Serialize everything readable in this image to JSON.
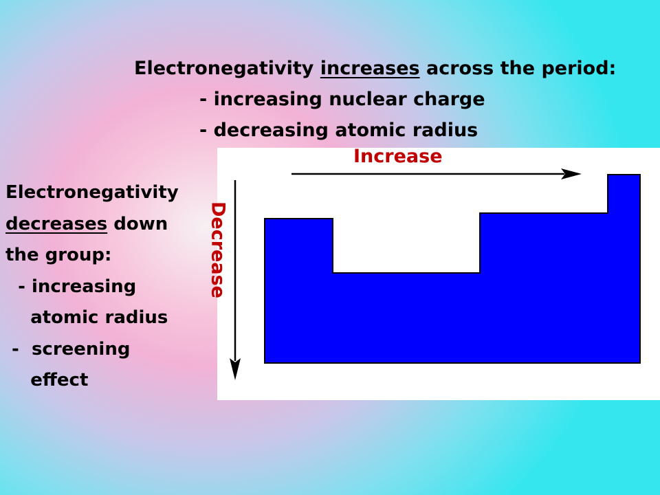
{
  "top": {
    "title_prefix": "Electronegativity ",
    "title_keyword": "increases",
    "title_suffix": " across the period:",
    "bullets": [
      "- increasing nuclear charge",
      "- decreasing atomic radius"
    ]
  },
  "side": {
    "line1": "Electronegativity",
    "line2_keyword": "decreases",
    "line2_suffix": " down",
    "line3": "the group:",
    "line4": "  - increasing",
    "line5": "    atomic radius",
    "line6": " -  screening",
    "line7": "    effect"
  },
  "diagram": {
    "increase_label": "Increase",
    "decrease_label": "Decrease",
    "label_color": "#c00000",
    "shape_color": "#0000ff"
  }
}
